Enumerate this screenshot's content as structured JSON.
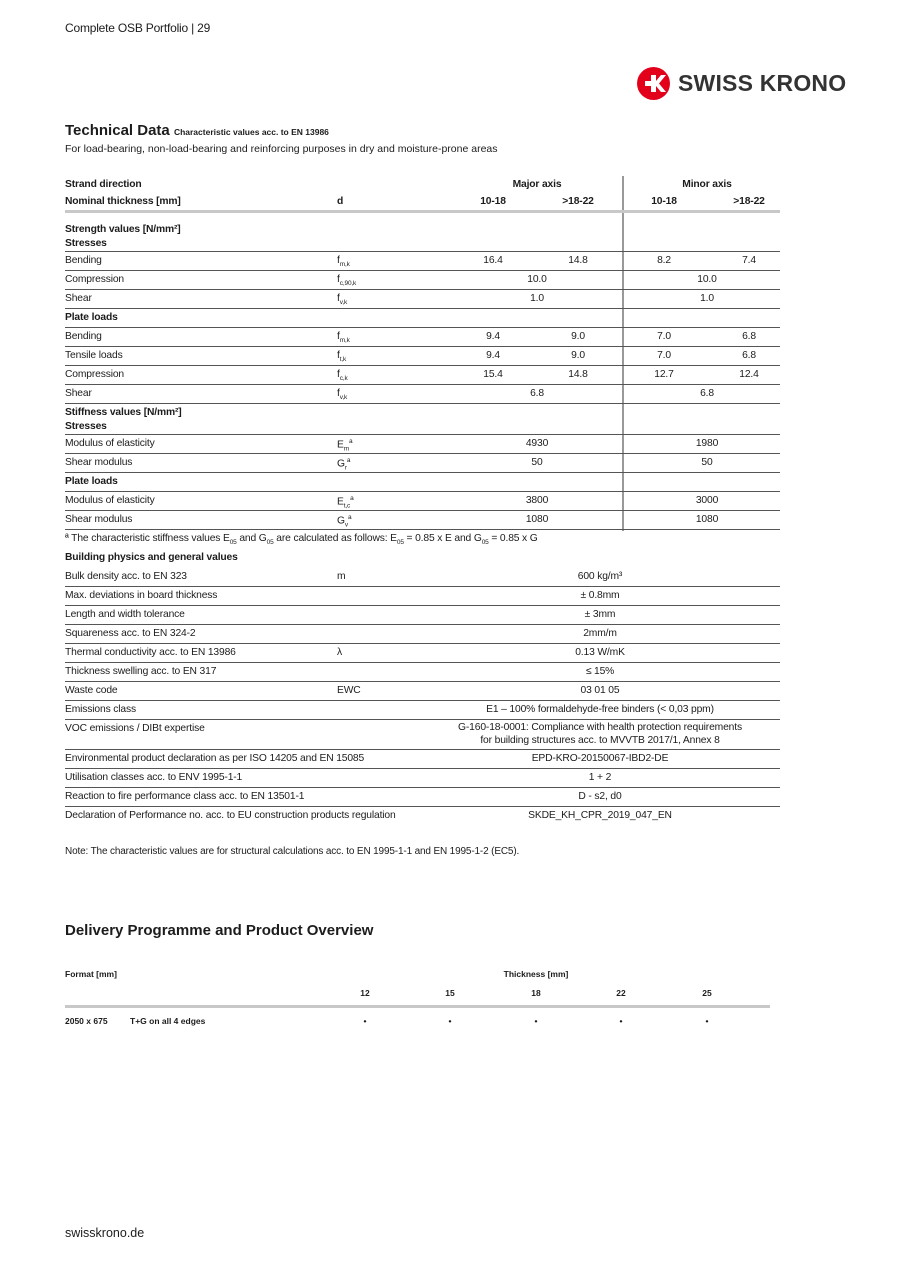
{
  "header": {
    "text": "Complete OSB Portfolio  |  29"
  },
  "logo": {
    "text": "SWISS KRONO",
    "color": "#e3001b"
  },
  "technical": {
    "title": "Technical Data",
    "title_note": "Characteristic values acc. to EN 13986",
    "subtitle": "For load-bearing, non-load-bearing and reinforcing purposes in dry and moisture-prone areas",
    "head1": {
      "label": "Strand direction",
      "major": "Major axis",
      "minor": "Minor axis"
    },
    "head2": {
      "label": "Nominal thickness [mm]",
      "sym": "d",
      "cols": [
        "10-18",
        ">18-22",
        "10-18",
        ">18-22"
      ]
    },
    "rows": [
      {
        "type": "sec2",
        "label": "Strength values [N/mm²]",
        "label2": "Stresses"
      },
      {
        "type": "row",
        "label": "Bending",
        "sym": {
          "main": "f",
          "sub": "m,k"
        },
        "vals": [
          "16.4",
          "14.8",
          "8.2",
          "7.4"
        ]
      },
      {
        "type": "row",
        "label": "Compression",
        "sym": {
          "main": "f",
          "sub": "c,90,k"
        },
        "merged": [
          "10.0",
          "10.0"
        ]
      },
      {
        "type": "row",
        "label": "Shear",
        "sym": {
          "main": "f",
          "sub": "v,k"
        },
        "merged": [
          "1.0",
          "1.0"
        ]
      },
      {
        "type": "sec",
        "label": "Plate loads"
      },
      {
        "type": "row",
        "label": "Bending",
        "sym": {
          "main": "f",
          "sub": "m,k"
        },
        "vals": [
          "9.4",
          "9.0",
          "7.0",
          "6.8"
        ]
      },
      {
        "type": "row",
        "label": "Tensile loads",
        "sym": {
          "main": "f",
          "sub": "t,k"
        },
        "vals": [
          "9.4",
          "9.0",
          "7.0",
          "6.8"
        ]
      },
      {
        "type": "row",
        "label": "Compression",
        "sym": {
          "main": "f",
          "sub": "c,k"
        },
        "vals": [
          "15.4",
          "14.8",
          "12.7",
          "12.4"
        ]
      },
      {
        "type": "row",
        "label": "Shear",
        "sym": {
          "main": "f",
          "sub": "v,k"
        },
        "merged": [
          "6.8",
          "6.8"
        ]
      },
      {
        "type": "sec2",
        "label": "Stiffness values [N/mm²]",
        "label2": "Stresses"
      },
      {
        "type": "row",
        "label": "Modulus of elasticity",
        "sym": {
          "main": "E",
          "sub": "m",
          "sup": "a"
        },
        "merged": [
          "4930",
          "1980"
        ]
      },
      {
        "type": "row",
        "label": "Shear modulus",
        "sym": {
          "main": "G",
          "sub": "r",
          "sup": "a"
        },
        "merged": [
          "50",
          "50"
        ]
      },
      {
        "type": "sec",
        "label": "Plate loads"
      },
      {
        "type": "row",
        "label": "Modulus of elasticity",
        "sym": {
          "main": "E",
          "sub": "t,c",
          "sup": "a"
        },
        "merged": [
          "3800",
          "3000"
        ]
      },
      {
        "type": "row",
        "label": "Shear modulus",
        "sym": {
          "main": "G",
          "sub": "v",
          "sup": "a"
        },
        "merged": [
          "1080",
          "1080"
        ]
      }
    ],
    "footnote": {
      "pre": "ª The characteristic stiffness values E",
      "s1": "05",
      "m1": " and G",
      "s2": "05",
      "m2": " are calculated as follows: E",
      "s3": "05",
      "m3": " = 0.85 x E and G",
      "s4": "05",
      "post": " = 0.85 x G"
    },
    "general_heading": "Building physics and general values",
    "general": [
      {
        "label": "Bulk density acc. to EN 323",
        "sym": "m",
        "value": "600 kg/m³"
      },
      {
        "label": "Max. deviations in board thickness",
        "sym": "",
        "value": "± 0.8mm"
      },
      {
        "label": "Length and width tolerance",
        "sym": "",
        "value": "± 3mm"
      },
      {
        "label": "Squareness acc. to EN 324-2",
        "sym": "",
        "value": "2mm/m"
      },
      {
        "label": "Thermal conductivity acc. to EN 13986",
        "sym": "λ",
        "value": "0.13 W/mK"
      },
      {
        "label": "Thickness swelling acc. to EN 317",
        "sym": "",
        "value": "≤ 15%"
      },
      {
        "label": "Waste code",
        "sym": "EWC",
        "value": "03 01 05"
      },
      {
        "label": "Emissions class",
        "sym": "",
        "value": "E1 – 100% formaldehyde-free binders (< 0,03 ppm)"
      },
      {
        "label": "VOC emissions  / DIBt expertise",
        "sym": "",
        "value": "G-160-18-0001: Compliance with health protection requirements",
        "value2": "for building structures acc. to MVVTB 2017/1, Annex 8"
      },
      {
        "label": "Environmental product declaration as per ISO 14205 and EN 15085",
        "sym": "",
        "value": "EPD-KRO-20150067-IBD2-DE"
      },
      {
        "label": "Utilisation classes acc. to ENV 1995-1-1",
        "sym": "",
        "value": "1 + 2"
      },
      {
        "label": "Reaction to fire performance class acc. to EN 13501-1",
        "sym": "",
        "value": "D - s2, d0"
      },
      {
        "label": "Declaration of Performance no. acc. to  EU construction products regulation",
        "sym": "",
        "value": "SKDE_KH_CPR_2019_047_EN"
      }
    ],
    "note": "Note: The characteristic values are for structural calculations acc. to EN 1995-1-1 and EN 1995-1-2 (EC5)."
  },
  "delivery": {
    "title": "Delivery Programme and Product Overview",
    "format_header": "Format [mm]",
    "thickness_header": "Thickness [mm]",
    "thicknesses": [
      "12",
      "15",
      "18",
      "22",
      "25"
    ],
    "rows": [
      {
        "format": "2050 x 675",
        "edge": "T+G on all 4 edges",
        "avail": [
          "•",
          "•",
          "•",
          "•",
          "•"
        ]
      }
    ]
  },
  "footer": {
    "text": "swisskrono.de"
  }
}
